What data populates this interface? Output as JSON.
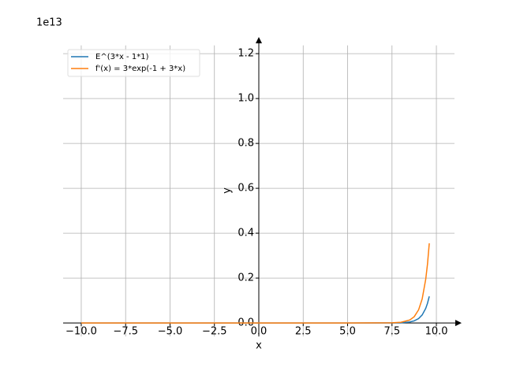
{
  "chart_data": {
    "type": "line",
    "x_label": "x",
    "y_label": "y",
    "y_offset_label": "1e13",
    "x": [
      -10,
      0,
      5,
      7.5,
      8,
      8.5,
      8.75,
      9,
      9.2,
      9.4,
      9.5,
      9.6
    ],
    "series": [
      {
        "name": "E^(3*x - 1*1)",
        "color": "#1f77b4",
        "values": [
          0,
          0,
          0,
          0.0002,
          0.001,
          0.0044,
          0.0093,
          0.0196,
          0.0357,
          0.065,
          0.0878,
          0.1185
        ]
      },
      {
        "name": "f'(x) = 3*exp(-1 + 3*x)",
        "color": "#ff7f0e",
        "values": [
          0,
          0,
          0,
          0.0007,
          0.003,
          0.0131,
          0.0278,
          0.0588,
          0.107,
          0.195,
          0.263,
          0.355
        ]
      }
    ],
    "xlim": [
      -11.02,
      11.02
    ],
    "ylim": [
      -0.06,
      1.237
    ],
    "xticks": [
      {
        "value": -10,
        "label": "−10.0"
      },
      {
        "value": -7.5,
        "label": "−7.5"
      },
      {
        "value": -5,
        "label": "−5.0"
      },
      {
        "value": -2.5,
        "label": "−2.5"
      },
      {
        "value": 0,
        "label": "0.0"
      },
      2.5,
      {
        "value": 5,
        "label": "5.0"
      },
      7.5,
      {
        "value": 10,
        "label": "10.0"
      }
    ],
    "yticks": [
      {
        "value": 0,
        "label": "0.0"
      },
      0.2,
      0.4,
      0.6,
      0.8,
      {
        "value": 1,
        "label": "1.0"
      },
      1.2
    ],
    "grid": true,
    "legend": "upper left"
  }
}
